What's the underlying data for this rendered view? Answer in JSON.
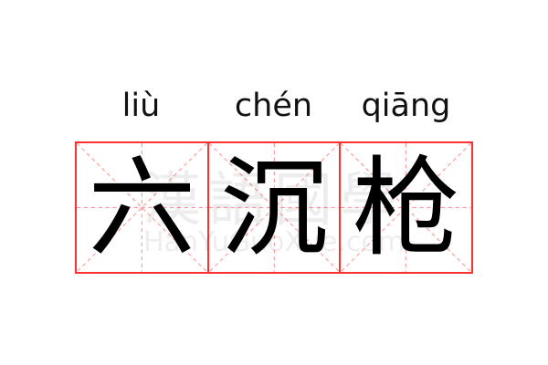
{
  "entries": [
    {
      "pinyin": "liù",
      "char": "六"
    },
    {
      "pinyin": "chén",
      "char": "沉"
    },
    {
      "pinyin": "qiāng",
      "char": "枪"
    }
  ],
  "watermark": {
    "cn": "漢語國學",
    "en": "HanYuGuoXue.com"
  },
  "colors": {
    "border": "#ff3030",
    "guide": "#ff9999",
    "text": "#000000"
  }
}
